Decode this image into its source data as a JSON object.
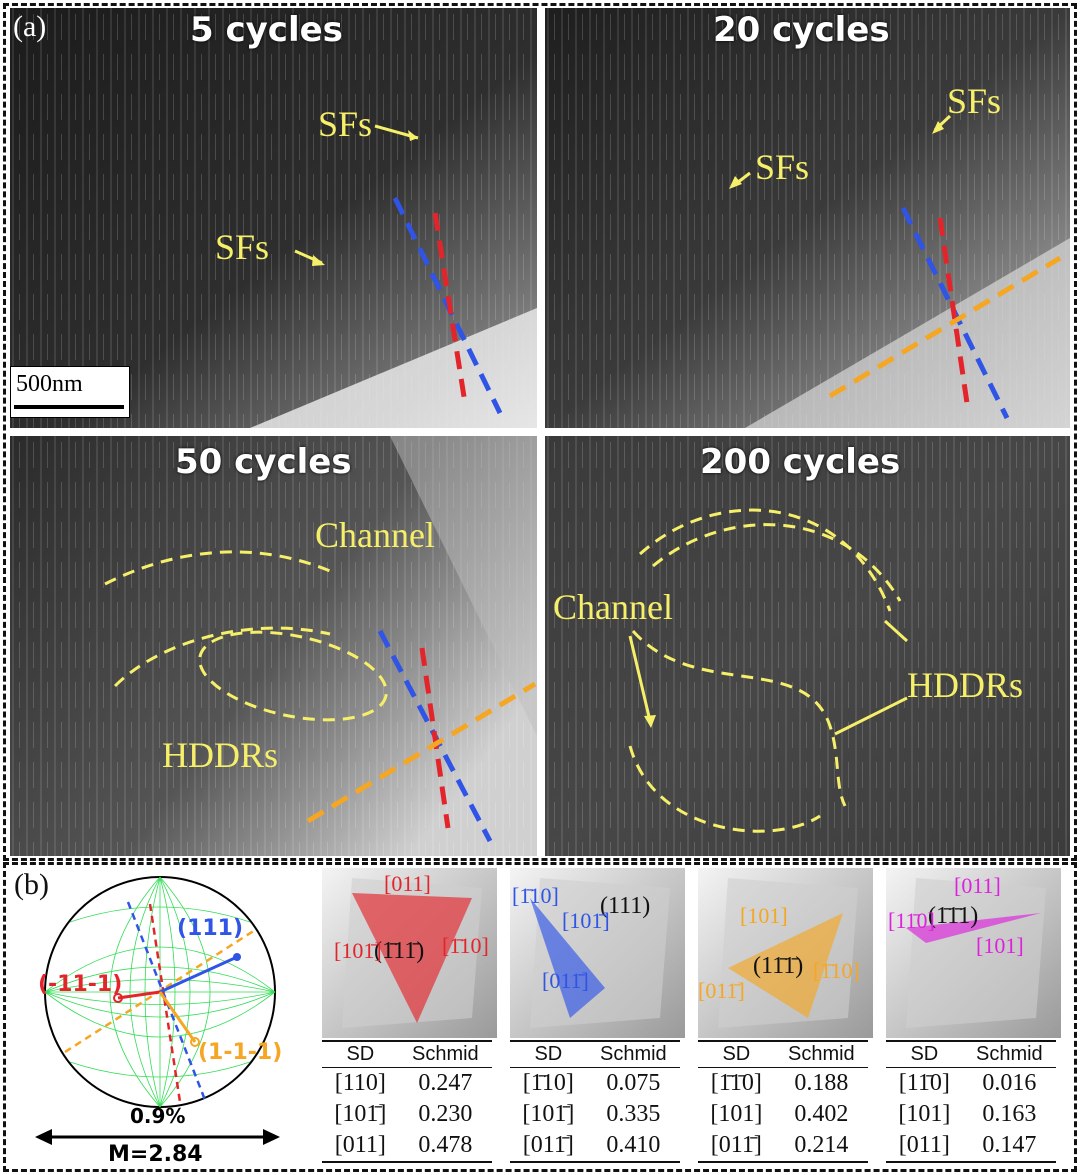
{
  "part_a": {
    "label": "(a)",
    "scale_bar": "500nm",
    "panels": [
      {
        "title": "5 cycles",
        "annotations": [
          "SFs",
          "SFs"
        ]
      },
      {
        "title": "20 cycles",
        "annotations": [
          "SFs",
          "SFs"
        ]
      },
      {
        "title": "50 cycles",
        "annotations": [
          "Channel",
          "HDDRs"
        ]
      },
      {
        "title": "200 cycles",
        "annotations": [
          "Channel",
          "HDDRs"
        ]
      }
    ]
  },
  "part_b": {
    "label": "(b)",
    "pole_figure": {
      "poles": [
        "(111)",
        "(-11-1)",
        "(1-1-1)"
      ],
      "strain": "0.9%",
      "taylor": "M=2.84"
    },
    "colors": {
      "red": "#e3252b",
      "blue": "#2f54e6",
      "orange": "#f5a623",
      "magenta": "#dd22dd"
    },
    "planes": [
      {
        "plane": "(1̄11̄)",
        "dirs": [
          "[011]",
          "[101̄]",
          "[1̄10]"
        ],
        "color": "red",
        "col_sd": "SD",
        "col_schmid": "Schmid",
        "rows": [
          [
            "[110]",
            "0.247"
          ],
          [
            "[101̄]",
            "0.230"
          ],
          [
            "[011]",
            "0.478"
          ]
        ]
      },
      {
        "plane": "(111)",
        "dirs": [
          "[1̄10]",
          "[101̄]",
          "[011̄]"
        ],
        "color": "blue",
        "col_sd": "SD",
        "col_schmid": "Schmid",
        "rows": [
          [
            "[1̄10]",
            "0.075"
          ],
          [
            "[101̄]",
            "0.335"
          ],
          [
            "[011̄]",
            "0.410"
          ]
        ]
      },
      {
        "plane": "(11̄1̄)",
        "dirs": [
          "[101]",
          "[011̄]",
          "[1̄10]"
        ],
        "color": "orange",
        "col_sd": "SD",
        "col_schmid": "Schmid",
        "rows": [
          [
            "[1̄1̄0]",
            "0.188"
          ],
          [
            "[101]",
            "0.402"
          ],
          [
            "[011̄]",
            "0.214"
          ]
        ]
      },
      {
        "plane": "(1̄1̄1)",
        "dirs": [
          "[011]",
          "[11̄0]",
          "[101]"
        ],
        "color": "magenta",
        "col_sd": "SD",
        "col_schmid": "Schmid",
        "rows": [
          [
            "[11̄0]",
            "0.016"
          ],
          [
            "[101]",
            "0.163"
          ],
          [
            "[011]",
            "0.147"
          ]
        ]
      }
    ]
  }
}
